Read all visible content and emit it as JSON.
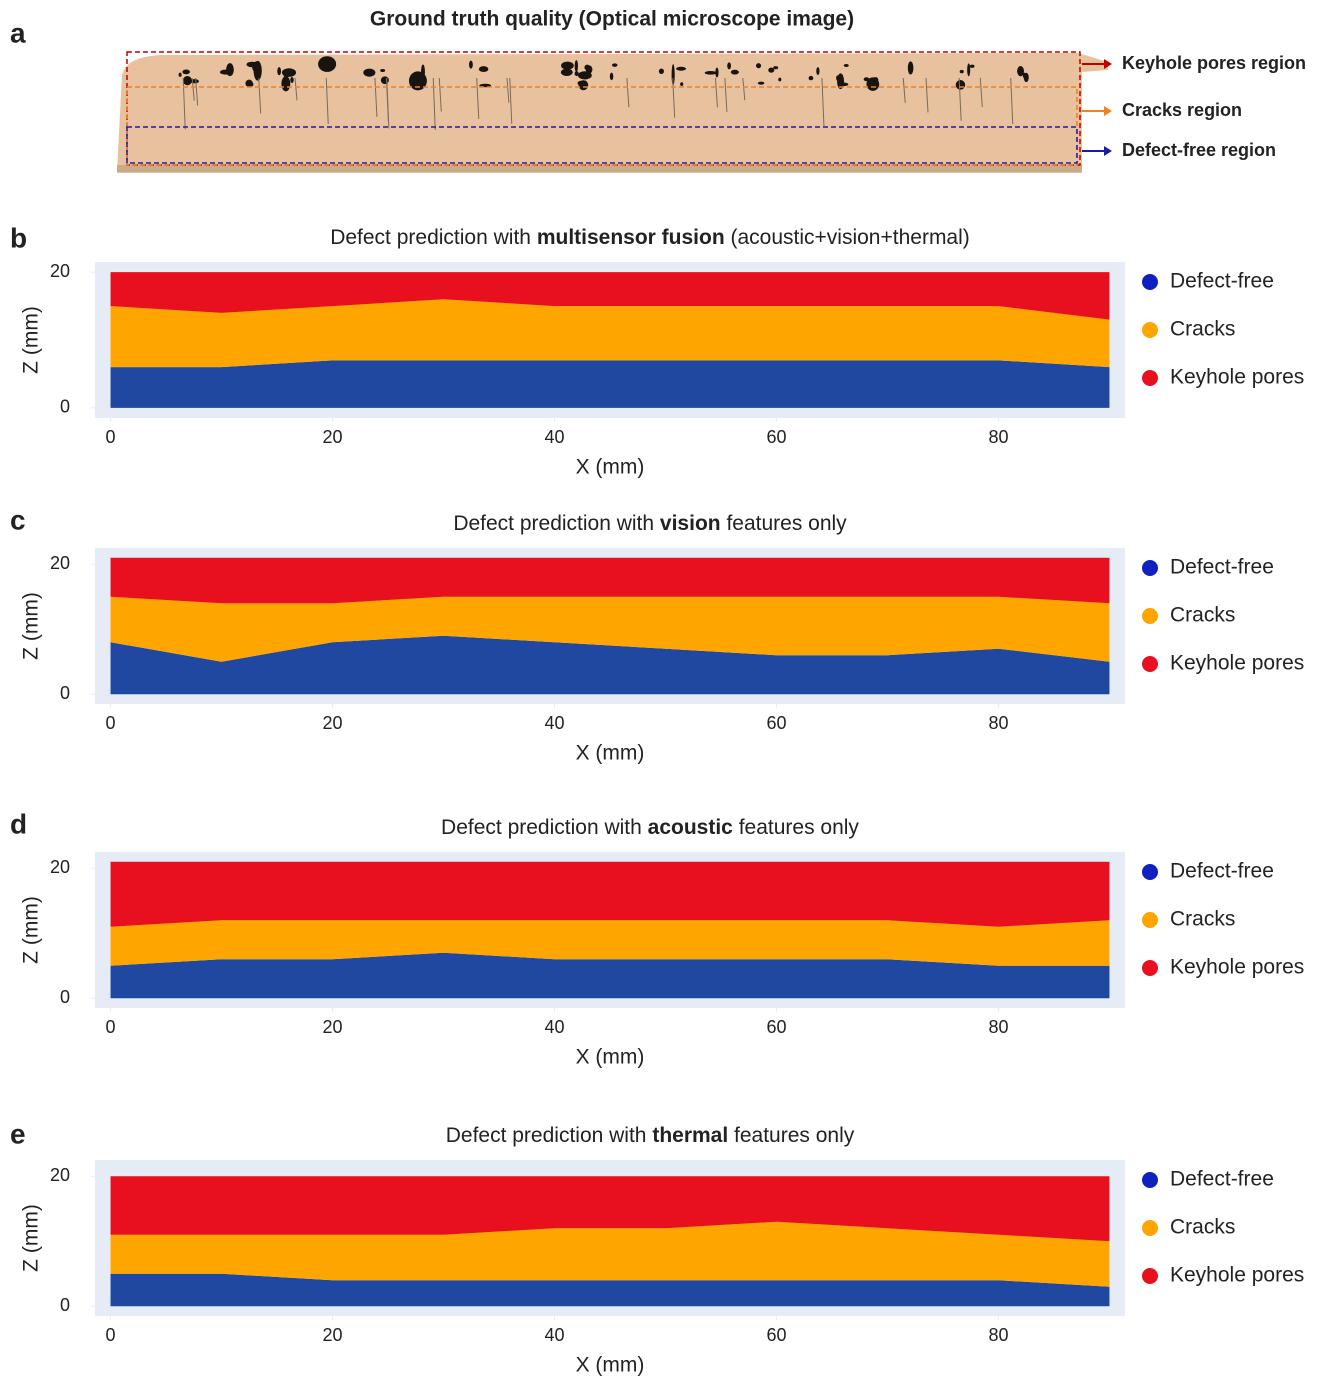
{
  "panel_labels": [
    "a",
    "b",
    "c",
    "d",
    "e"
  ],
  "image_panel": {
    "title": "Ground truth quality (Optical microscope image)",
    "regions": [
      {
        "label": "Keyhole pores region",
        "color": "#c00000"
      },
      {
        "label": "Cracks region",
        "color": "#f08020"
      },
      {
        "label": "Defect-free region",
        "color": "#1a1ab0"
      }
    ]
  },
  "chart_data": [
    {
      "type": "area",
      "title_parts": [
        "Defect prediction with ",
        "multisensor fusion",
        " (acoustic+vision+thermal)"
      ],
      "xlabel": "X (mm)",
      "ylabel": "Z (mm)",
      "xlim": [
        -1.4,
        91.4
      ],
      "ylim": [
        -1.5,
        21.5
      ],
      "xticks": [
        0,
        20,
        40,
        60,
        80
      ],
      "yticks": [
        0,
        20
      ],
      "legend": "right",
      "x": [
        0,
        10,
        20,
        30,
        40,
        50,
        60,
        70,
        80,
        90
      ],
      "series": [
        {
          "name": "Defect-free",
          "color": "#2148a0",
          "values": [
            6,
            6,
            7,
            7,
            7,
            7,
            7,
            7,
            7,
            6
          ]
        },
        {
          "name": "Cracks",
          "color": "#ffa500",
          "values": [
            9,
            8,
            8,
            9,
            8,
            8,
            8,
            8,
            8,
            7
          ]
        },
        {
          "name": "Keyhole pores",
          "color": "#e8101e",
          "values": [
            5,
            6,
            5,
            4,
            5,
            5,
            5,
            5,
            5,
            7
          ]
        }
      ]
    },
    {
      "type": "area",
      "title_parts": [
        "Defect prediction with ",
        "vision",
        " features only"
      ],
      "xlabel": "X (mm)",
      "ylabel": "Z (mm)",
      "xlim": [
        -1.4,
        91.4
      ],
      "ylim": [
        -1.5,
        22.5
      ],
      "xticks": [
        0,
        20,
        40,
        60,
        80
      ],
      "yticks": [
        0,
        20
      ],
      "legend": "right",
      "x": [
        0,
        10,
        20,
        30,
        40,
        50,
        60,
        70,
        80,
        90
      ],
      "series": [
        {
          "name": "Defect-free",
          "color": "#2148a0",
          "values": [
            8,
            5,
            8,
            9,
            8,
            7,
            6,
            6,
            7,
            5
          ]
        },
        {
          "name": "Cracks",
          "color": "#ffa500",
          "values": [
            7,
            9,
            6,
            6,
            7,
            8,
            9,
            9,
            8,
            9
          ]
        },
        {
          "name": "Keyhole pores",
          "color": "#e8101e",
          "values": [
            6,
            7,
            7,
            6,
            6,
            6,
            6,
            6,
            6,
            7
          ]
        }
      ]
    },
    {
      "type": "area",
      "title_parts": [
        "Defect prediction with ",
        "acoustic",
        " features only"
      ],
      "xlabel": "X (mm)",
      "ylabel": "Z (mm)",
      "xlim": [
        -1.4,
        91.4
      ],
      "ylim": [
        -1.5,
        22.5
      ],
      "xticks": [
        0,
        20,
        40,
        60,
        80
      ],
      "yticks": [
        0,
        20
      ],
      "legend": "right",
      "x": [
        0,
        10,
        20,
        30,
        40,
        50,
        60,
        70,
        80,
        90
      ],
      "series": [
        {
          "name": "Defect-free",
          "color": "#2148a0",
          "values": [
            5,
            6,
            6,
            7,
            6,
            6,
            6,
            6,
            5,
            5
          ]
        },
        {
          "name": "Cracks",
          "color": "#ffa500",
          "values": [
            6,
            6,
            6,
            5,
            6,
            6,
            6,
            6,
            6,
            7
          ]
        },
        {
          "name": "Keyhole pores",
          "color": "#e8101e",
          "values": [
            10,
            9,
            9,
            9,
            9,
            9,
            9,
            9,
            10,
            9
          ]
        }
      ]
    },
    {
      "type": "area",
      "title_parts": [
        "Defect prediction with ",
        "thermal",
        " features only"
      ],
      "xlabel": "X (mm)",
      "ylabel": "Z (mm)",
      "xlim": [
        -1.4,
        91.4
      ],
      "ylim": [
        -1.5,
        22.5
      ],
      "xticks": [
        0,
        20,
        40,
        60,
        80
      ],
      "yticks": [
        0,
        20
      ],
      "legend": "right",
      "x": [
        0,
        10,
        20,
        30,
        40,
        50,
        60,
        70,
        80,
        90
      ],
      "series": [
        {
          "name": "Defect-free",
          "color": "#2148a0",
          "values": [
            5,
            5,
            4,
            4,
            4,
            4,
            4,
            4,
            4,
            3
          ]
        },
        {
          "name": "Cracks",
          "color": "#ffa500",
          "values": [
            6,
            6,
            7,
            7,
            8,
            8,
            9,
            8,
            7,
            7
          ]
        },
        {
          "name": "Keyhole pores",
          "color": "#e8101e",
          "values": [
            9,
            9,
            9,
            9,
            8,
            8,
            7,
            8,
            9,
            10
          ]
        }
      ]
    }
  ]
}
